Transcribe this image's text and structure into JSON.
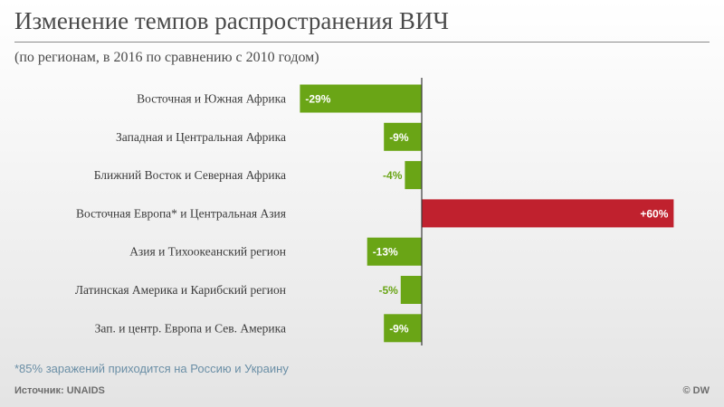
{
  "header": {
    "title": "Изменение темпов распространения ВИЧ",
    "subtitle": "(по регионам, в 2016 по сравнению с 2010 годом)"
  },
  "chart_data": {
    "type": "bar",
    "orientation": "horizontal",
    "categories": [
      "Восточная и Южная Африка",
      "Западная и Центральная Африка",
      "Ближний Восток и Северная Африка",
      "Восточная Европа* и Центральная Азия",
      "Азия и Тихоокеанский регион",
      "Латинская Америка и Карибский регион",
      "Зап. и центр. Европа и Сев. Америка"
    ],
    "values": [
      -29,
      -9,
      -4,
      60,
      -13,
      -5,
      -9
    ],
    "data_labels": [
      "-29%",
      "-9%",
      "-4%",
      "+60%",
      "-13%",
      "-5%",
      "-9%"
    ],
    "colors": {
      "negative": "#6aa516",
      "positive": "#c0212e",
      "axis": "#3a3a3a"
    },
    "title": "Изменение темпов распространения ВИЧ",
    "subtitle": "(по регионам, в 2016 по сравнению с 2010 годом)",
    "xlim": [
      -29,
      60
    ],
    "grid": false,
    "legend": "none"
  },
  "footer": {
    "footnote": "*85% заражений приходится на Россию и Украину",
    "source": "Источник: UNAIDS",
    "credit": "© DW"
  }
}
